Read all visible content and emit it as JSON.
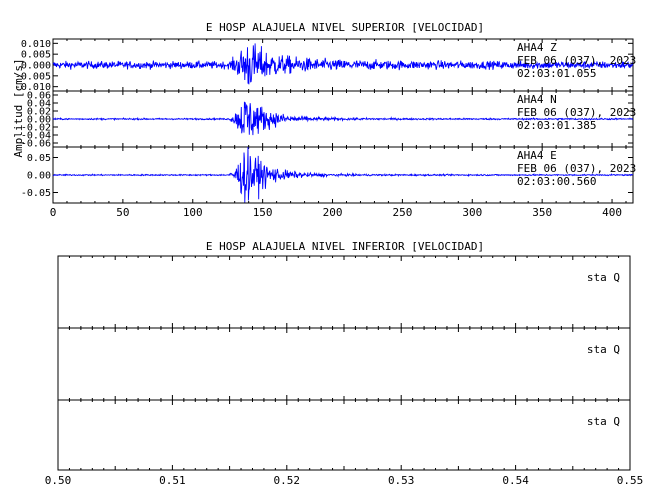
{
  "colors": {
    "trace": "#0000ff",
    "axes": "#000000",
    "background": "#ffffff"
  },
  "chart_data": [
    {
      "type": "line",
      "title": "E HOSP ALAJUELA NIVEL SUPERIOR [VELOCIDAD]",
      "ylabel": "Amplitud [cm/s]",
      "xlabel": "",
      "xlim": [
        0,
        415
      ],
      "x_ticks": [
        0,
        50,
        100,
        150,
        200,
        250,
        300,
        350,
        400
      ],
      "event_window": {
        "onset": 125,
        "peak": 138,
        "coda_end": 280
      },
      "grid": false,
      "panels": [
        {
          "name": "Z",
          "station": "AHA4 Z",
          "date": "FEB 06 (037), 2023",
          "time": "02:03:01.055",
          "ylim": [
            -0.012,
            0.012
          ],
          "y_ticks": [
            "0.010",
            "0.005",
            "0.000",
            "-0.005",
            "-0.010"
          ],
          "y_tick_values": [
            0.01,
            0.005,
            0.0,
            -0.005,
            -0.01
          ],
          "noise_amplitude": 0.0014,
          "peak_amplitude": 0.009
        },
        {
          "name": "N",
          "station": "AHA4 N",
          "date": "FEB 06 (037), 2023",
          "time": "02:03:01.385",
          "ylim": [
            -0.07,
            0.07
          ],
          "y_ticks": [
            "0.06",
            "0.04",
            "0.02",
            "0.00",
            "-0.02",
            "-0.04",
            "-0.06"
          ],
          "y_tick_values": [
            0.06,
            0.04,
            0.02,
            0.0,
            -0.02,
            -0.04,
            -0.06
          ],
          "noise_amplitude": 0.0015,
          "peak_amplitude": 0.055
        },
        {
          "name": "E",
          "station": "AHA4 E",
          "date": "FEB 06 (037), 2023",
          "time": "02:03:00.560",
          "ylim": [
            -0.08,
            0.08
          ],
          "y_ticks": [
            "0.05",
            "0.00",
            "-0.05"
          ],
          "y_tick_values": [
            0.05,
            0.0,
            -0.05
          ],
          "noise_amplitude": 0.0015,
          "peak_amplitude": 0.07
        }
      ]
    },
    {
      "type": "line",
      "title": "E HOSP ALAJUELA NIVEL INFERIOR [VELOCIDAD]",
      "xlim": [
        0.5,
        0.55
      ],
      "x_ticks": [
        "0.50",
        "0.51",
        "0.52",
        "0.53",
        "0.54",
        "0.55"
      ],
      "x_tick_values": [
        0.5,
        0.51,
        0.52,
        0.53,
        0.54,
        0.55
      ],
      "grid": false,
      "panels": [
        {
          "label": "sta Q"
        },
        {
          "label": "sta Q"
        },
        {
          "label": "sta Q"
        }
      ]
    }
  ]
}
